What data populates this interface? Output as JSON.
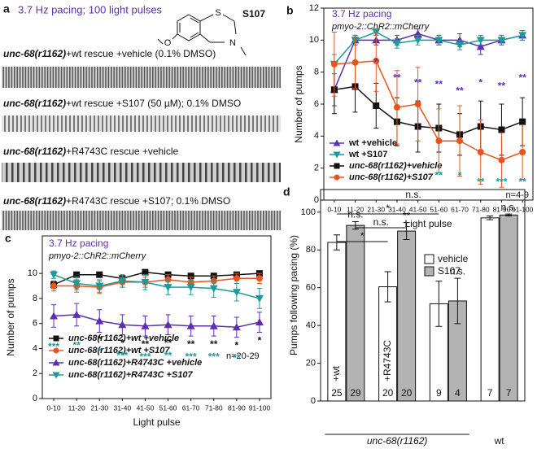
{
  "panel_a": {
    "letter": "a",
    "title": "3.7 Hz pacing; 100 light pulses",
    "compound": "S107",
    "atoms": [
      "S",
      "N",
      "O"
    ],
    "rows": [
      {
        "gene": "unc-68(r1162)",
        "text": "+wt rescue +vehicle (0.1% DMSO)"
      },
      {
        "gene": "unc-68(r1162)",
        "text": "+wt rescue +S107 (50 µM); 0.1% DMSO"
      },
      {
        "gene": "unc-68(r1162)",
        "text": "+R4743C rescue +vehicle"
      },
      {
        "gene": "unc-68(r1162)",
        "text": "+R4743C rescue +S107; 0.1% DMSO"
      }
    ]
  },
  "chart_data": [
    {
      "type": "line",
      "letter": "b",
      "subtitle": "3.7 Hz pacing",
      "subtitle2": "pmyo-2::ChR2::mCherry",
      "ylabel": "Number of pumps",
      "xlabel": "Light pulse",
      "note": "n=4-9",
      "categories": [
        "0-10",
        "11-20",
        "21-30",
        "31-40",
        "41-50",
        "51-60",
        "61-70",
        "71-80",
        "81-90",
        "91-100"
      ],
      "ylim": [
        0,
        12
      ],
      "yticks": [
        0,
        2,
        4,
        6,
        8,
        10,
        12
      ],
      "series": [
        {
          "name": "wt +vehicle",
          "color": "#5b2fb0",
          "marker": "triangle-up",
          "values": [
            6.9,
            10.0,
            10.0,
            10.0,
            10.4,
            10.0,
            10.0,
            9.6,
            10.0,
            10.3
          ],
          "errors": [
            1.0,
            0.3,
            0.3,
            0.3,
            0.3,
            0.3,
            0.4,
            0.5,
            0.3,
            0.3
          ]
        },
        {
          "name": "wt +S107",
          "color": "#1a9a9a",
          "marker": "triangle-down",
          "values": [
            8.5,
            10.0,
            10.5,
            9.8,
            10.0,
            10.0,
            9.7,
            10.0,
            10.0,
            10.3
          ],
          "errors": [
            0.6,
            0.3,
            0.2,
            0.3,
            0.3,
            0.3,
            0.3,
            0.3,
            0.3,
            0.3
          ]
        },
        {
          "name": "unc-68(r1162)+vehicle",
          "color": "#111111",
          "marker": "square",
          "values": [
            6.9,
            7.1,
            5.9,
            4.9,
            4.6,
            4.5,
            4.1,
            4.6,
            4.4,
            4.9
          ],
          "errors": [
            1.5,
            1.6,
            1.4,
            1.5,
            1.6,
            1.5,
            1.3,
            1.6,
            1.6,
            1.5
          ]
        },
        {
          "name": "unc-68(r1162)+S107",
          "color": "#e8541e",
          "marker": "circle",
          "values": [
            8.5,
            8.6,
            8.7,
            5.8,
            6.0,
            3.7,
            3.7,
            3.0,
            2.5,
            3.0
          ],
          "errors": [
            2.0,
            1.6,
            1.9,
            2.3,
            2.3,
            2.0,
            2.2,
            2.0,
            1.7,
            1.7
          ]
        }
      ],
      "significance": [
        {
          "color": "#5b2fb0",
          "labels": [
            null,
            null,
            "*",
            "**",
            "**",
            "**",
            "**",
            "*",
            "**",
            "**"
          ]
        },
        {
          "color": "#1a9a9a",
          "labels": [
            null,
            null,
            null,
            null,
            null,
            "**",
            "*",
            "**",
            "***",
            "**"
          ]
        }
      ]
    },
    {
      "type": "line",
      "letter": "c",
      "subtitle": "3.7 Hz pacing",
      "subtitle2": "pmyo-2::ChR2::mCherry",
      "ylabel": "Number of pumps",
      "xlabel": "Light pulse",
      "note": "n=20-29",
      "categories": [
        "0-10",
        "11-20",
        "21-30",
        "31-40",
        "41-50",
        "51-60",
        "61-70",
        "71-80",
        "81-90",
        "91-100"
      ],
      "ylim": [
        0,
        13
      ],
      "yticks": [
        0,
        2,
        4,
        6,
        8,
        10
      ],
      "series": [
        {
          "name": "unc-68(r1162)+wt +vehicle",
          "color": "#111111",
          "marker": "square",
          "values": [
            9.1,
            9.9,
            9.9,
            9.6,
            10.1,
            9.9,
            9.8,
            9.8,
            9.9,
            10.0
          ],
          "errors": [
            0.3,
            0.2,
            0.2,
            0.2,
            0.2,
            0.2,
            0.2,
            0.2,
            0.2,
            0.2
          ]
        },
        {
          "name": "unc-68(r1162)+wt +S107",
          "color": "#e8541e",
          "marker": "circle",
          "values": [
            9.0,
            9.0,
            8.9,
            9.3,
            9.3,
            9.5,
            9.3,
            9.4,
            9.6,
            9.6
          ],
          "errors": [
            0.4,
            0.5,
            0.5,
            0.4,
            0.4,
            0.4,
            0.4,
            0.4,
            0.4,
            0.4
          ]
        },
        {
          "name": "unc-68(r1162)+R4743C +vehicle",
          "color": "#5b2fb0",
          "marker": "triangle-up",
          "values": [
            6.6,
            6.7,
            6.2,
            5.9,
            5.8,
            5.9,
            5.8,
            5.8,
            5.7,
            6.1
          ],
          "errors": [
            0.9,
            0.9,
            0.9,
            0.8,
            0.8,
            0.8,
            0.8,
            0.8,
            0.8,
            0.8
          ]
        },
        {
          "name": "unc-68(r1162)+R4743C +S107",
          "color": "#1a9a9a",
          "marker": "triangle-down",
          "values": [
            9.9,
            9.2,
            9.0,
            9.4,
            9.3,
            8.9,
            8.9,
            8.8,
            8.5,
            8.0
          ],
          "errors": [
            0.3,
            0.5,
            0.5,
            0.5,
            0.6,
            0.6,
            0.6,
            0.7,
            0.7,
            0.8
          ]
        }
      ],
      "significance": [
        {
          "color": "#111111",
          "labels": [
            null,
            null,
            "*",
            "*",
            "**",
            "**",
            "**",
            "**",
            "*",
            "*"
          ]
        },
        {
          "color": "#1a9a9a",
          "labels": [
            "***",
            "**",
            "*",
            "***",
            "***",
            "**",
            "***",
            "***",
            "**",
            null
          ]
        }
      ]
    },
    {
      "type": "bar",
      "letter": "d",
      "ylabel": "Pumps following pacing (%)",
      "categories": [
        "+wt",
        "+R4743C",
        null,
        null
      ],
      "group_labels": [
        {
          "label": "unc-68(r1162)",
          "span": [
            0,
            2
          ]
        },
        {
          "label": "wt",
          "span": [
            3,
            3
          ]
        }
      ],
      "ylim": [
        0,
        112
      ],
      "yticks": [
        0,
        20,
        40,
        60,
        80,
        100
      ],
      "series": [
        {
          "name": "vehicle",
          "color": "#ffffff",
          "values": [
            84,
            60.5,
            51.5,
            97
          ],
          "errors": [
            4,
            8,
            12,
            1
          ],
          "n": [
            25,
            20,
            9,
            7
          ],
          "marks": [
            null,
            null,
            null,
            null
          ]
        },
        {
          "name": "S107",
          "color": "#b3b3b3",
          "values": [
            93,
            90,
            53,
            98.5
          ],
          "errors": [
            2,
            4.5,
            12,
            0.5
          ],
          "n": [
            29,
            20,
            4,
            7
          ],
          "marks": [
            "n.s.",
            "**",
            "n.s.",
            "n.s."
          ]
        }
      ],
      "comparisons": [
        {
          "label": "n.s.",
          "between": [
            0,
            6
          ]
        },
        {
          "label": "*",
          "between": [
            0,
            4
          ]
        },
        {
          "label": "n.s.",
          "between": [
            1,
            3
          ]
        },
        {
          "label": "*",
          "between": [
            0,
            2
          ]
        }
      ]
    }
  ]
}
